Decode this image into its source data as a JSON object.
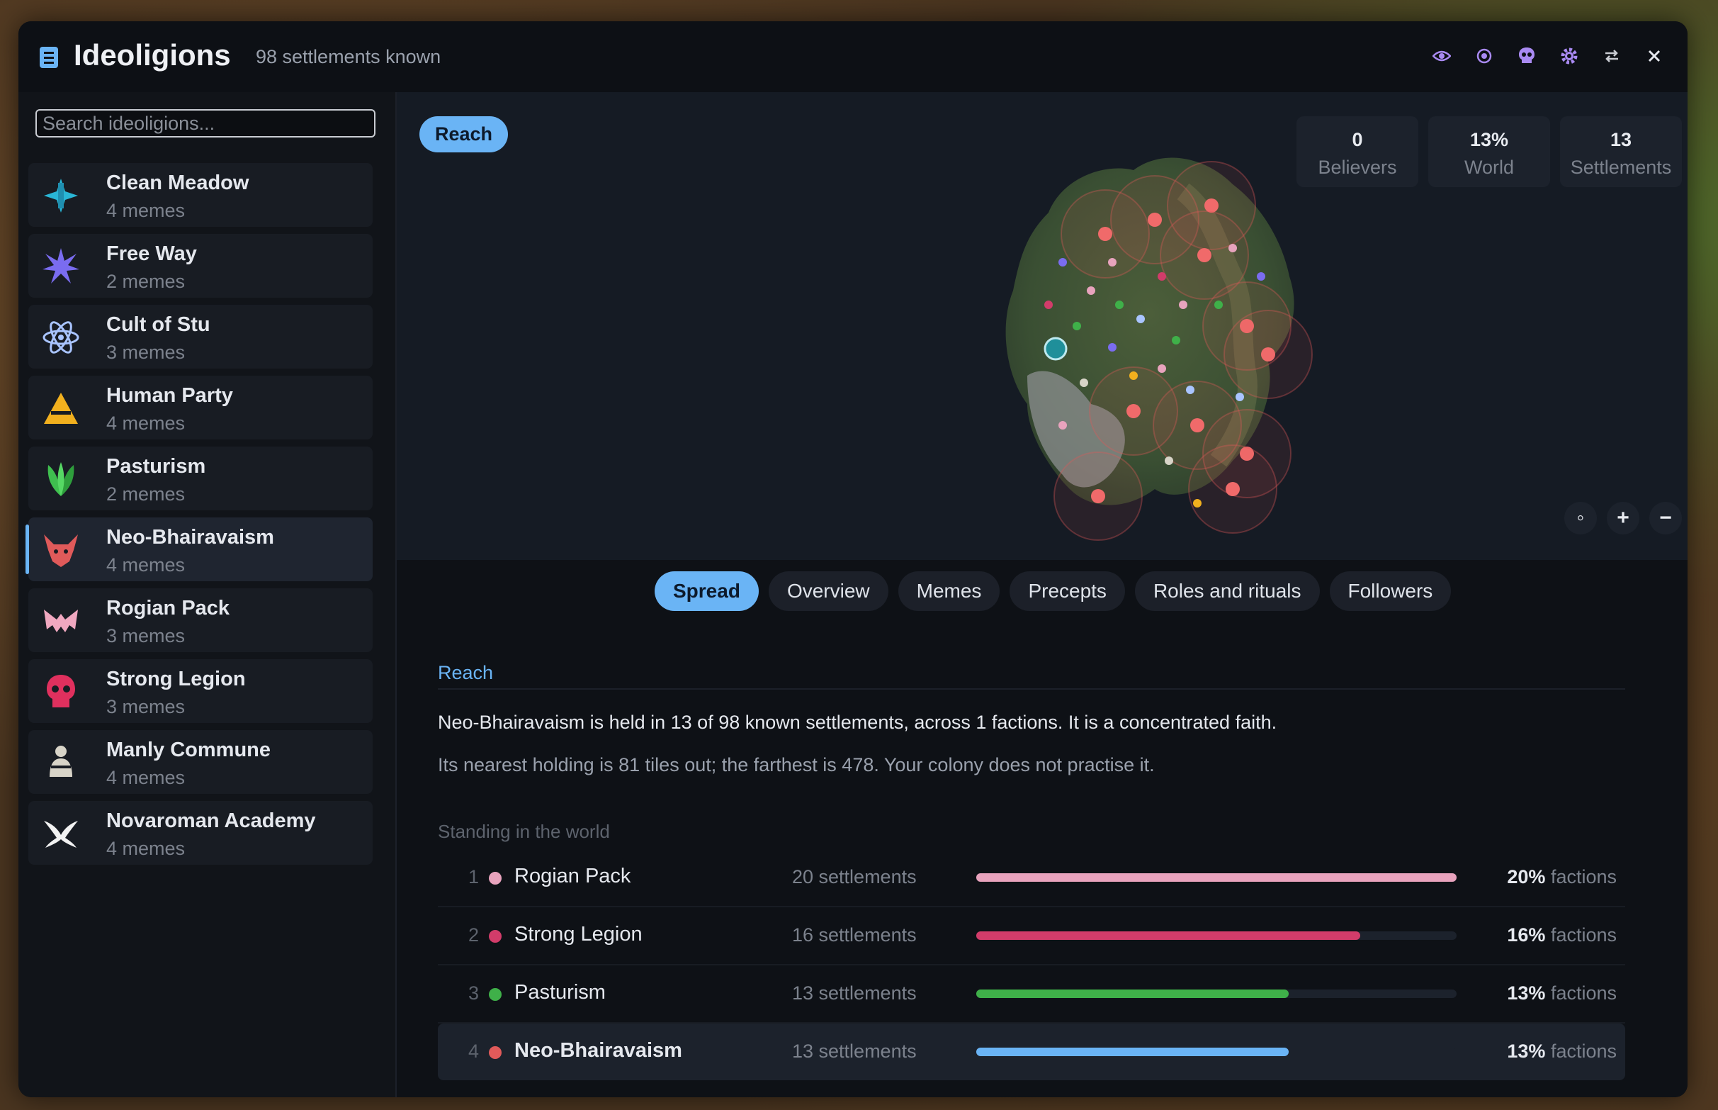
{
  "header": {
    "title": "Ideoligions",
    "subtitle": "98 settlements known"
  },
  "search": {
    "placeholder": "Search ideoligions..."
  },
  "ideoligions": [
    {
      "name": "Clean Meadow",
      "memes": "4 memes",
      "icon": "cross-plus-icon",
      "color": "#29b6d6"
    },
    {
      "name": "Free Way",
      "memes": "2 memes",
      "icon": "starburst-icon",
      "color": "#7a6cf0"
    },
    {
      "name": "Cult of Stu",
      "memes": "3 memes",
      "icon": "atom-icon",
      "color": "#a9c4ff"
    },
    {
      "name": "Human Party",
      "memes": "4 memes",
      "icon": "triangle-icon",
      "color": "#f2b01e"
    },
    {
      "name": "Pasturism",
      "memes": "2 memes",
      "icon": "leaves-icon",
      "color": "#3fbf4f"
    },
    {
      "name": "Neo-Bhairavaism",
      "memes": "4 memes",
      "icon": "demon-head-icon",
      "color": "#e05a5a",
      "selected": true
    },
    {
      "name": "Rogian Pack",
      "memes": "3 memes",
      "icon": "bat-wings-icon",
      "color": "#f0a8c0"
    },
    {
      "name": "Strong Legion",
      "memes": "3 memes",
      "icon": "skull-icon",
      "color": "#e0305e"
    },
    {
      "name": "Manly Commune",
      "memes": "4 memes",
      "icon": "figure-icon",
      "color": "#d8d4c8"
    },
    {
      "name": "Novaroman Academy",
      "memes": "4 memes",
      "icon": "wing-glyph-icon",
      "color": "#f2f2f2"
    }
  ],
  "map": {
    "reach_label": "Reach",
    "stats": [
      {
        "value": "0",
        "label": "Believers"
      },
      {
        "value": "13%",
        "label": "World"
      },
      {
        "value": "13",
        "label": "Settlements"
      }
    ],
    "zoom": {
      "reset": "◦",
      "in": "+",
      "out": "−"
    }
  },
  "tabs": [
    "Spread",
    "Overview",
    "Memes",
    "Precepts",
    "Roles and rituals",
    "Followers"
  ],
  "active_tab": "Spread",
  "spread": {
    "section_title": "Reach",
    "summary": "Neo-Bhairavaism is held in 13 of 98 known settlements, across 1 factions. It is a concentrated faith.",
    "detail": "Its nearest holding is 81 tiles out; the farthest is 478. Your colony does not practise it.",
    "standing_title": "Standing in the world",
    "rows": [
      {
        "rank": "1",
        "name": "Rogian Pack",
        "count": "20 settlements",
        "pct": "20%",
        "unit": "factions",
        "share": 1.0,
        "color": "#e8a3bd"
      },
      {
        "rank": "2",
        "name": "Strong Legion",
        "count": "16 settlements",
        "pct": "16%",
        "unit": "factions",
        "share": 0.8,
        "color": "#d23c6a"
      },
      {
        "rank": "3",
        "name": "Pasturism",
        "count": "13 settlements",
        "pct": "13%",
        "unit": "factions",
        "share": 0.65,
        "color": "#3fb049"
      },
      {
        "rank": "4",
        "name": "Neo-Bhairavaism",
        "count": "13 settlements",
        "pct": "13%",
        "unit": "factions",
        "share": 0.65,
        "color": "#6ab4f5",
        "dot": "#e05a5a",
        "highlight": true
      }
    ]
  }
}
